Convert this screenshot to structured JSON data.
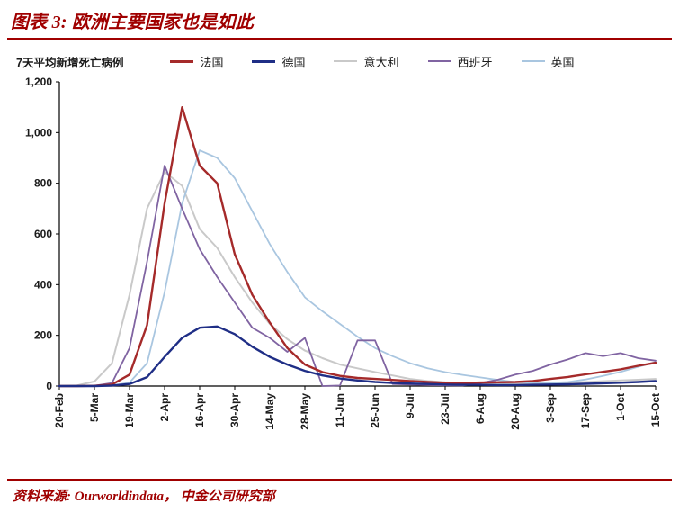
{
  "header": {
    "title": "图表 3: 欧洲主要国家也是如此",
    "accent_color": "#A00000"
  },
  "footer": {
    "source": "资料来源: Ourworldindata， 中金公司研究部"
  },
  "chart_data": {
    "type": "line",
    "title": "图表 3: 欧洲主要国家也是如此",
    "ylabel": "7天平均新增死亡病例",
    "xlabel": "",
    "ylim": [
      0,
      1200
    ],
    "ytick_step": 200,
    "grid": false,
    "legend_position": "top",
    "x": [
      "20-Feb",
      "27-Feb",
      "5-Mar",
      "12-Mar",
      "19-Mar",
      "26-Mar",
      "2-Apr",
      "9-Apr",
      "16-Apr",
      "23-Apr",
      "30-Apr",
      "7-May",
      "14-May",
      "21-May",
      "28-May",
      "4-Jun",
      "11-Jun",
      "18-Jun",
      "25-Jun",
      "2-Jul",
      "9-Jul",
      "16-Jul",
      "23-Jul",
      "30-Jul",
      "6-Aug",
      "13-Aug",
      "20-Aug",
      "27-Aug",
      "3-Sep",
      "10-Sep",
      "17-Sep",
      "24-Sep",
      "1-Oct",
      "8-Oct",
      "15-Oct"
    ],
    "x_tick_labels": [
      "20-Feb",
      "5-Mar",
      "19-Mar",
      "2-Apr",
      "16-Apr",
      "30-Apr",
      "14-May",
      "28-May",
      "11-Jun",
      "25-Jun",
      "9-Jul",
      "23-Jul",
      "6-Aug",
      "20-Aug",
      "3-Sep",
      "17-Sep",
      "1-Oct",
      "15-Oct"
    ],
    "draw_order": [
      2,
      4,
      3,
      0,
      1
    ],
    "series": [
      {
        "name": "法国",
        "color": "#A52A2A",
        "width": 2.4,
        "values": [
          0,
          0,
          1,
          6,
          45,
          240,
          720,
          1100,
          870,
          800,
          520,
          360,
          250,
          150,
          85,
          55,
          40,
          32,
          28,
          24,
          20,
          16,
          13,
          12,
          14,
          15,
          16,
          20,
          28,
          36,
          46,
          56,
          66,
          80,
          92
        ]
      },
      {
        "name": "德国",
        "color": "#1F2E86",
        "width": 2.4,
        "values": [
          0,
          0,
          0,
          2,
          8,
          35,
          115,
          190,
          230,
          235,
          205,
          155,
          115,
          85,
          60,
          42,
          30,
          22,
          16,
          12,
          10,
          8,
          6,
          5,
          5,
          4,
          4,
          5,
          6,
          7,
          9,
          11,
          13,
          16,
          20
        ]
      },
      {
        "name": "意大利",
        "color": "#C9C9C9",
        "width": 2,
        "values": [
          0,
          2,
          18,
          90,
          360,
          700,
          845,
          790,
          620,
          545,
          430,
          330,
          245,
          185,
          140,
          110,
          85,
          70,
          55,
          42,
          28,
          20,
          15,
          12,
          11,
          9,
          8,
          9,
          11,
          13,
          16,
          19,
          22,
          25,
          28
        ]
      },
      {
        "name": "西班牙",
        "color": "#8064A2",
        "width": 1.8,
        "values": [
          0,
          0,
          1,
          12,
          150,
          490,
          870,
          700,
          540,
          430,
          330,
          230,
          190,
          135,
          190,
          0,
          2,
          180,
          180,
          8,
          6,
          4,
          3,
          2,
          12,
          25,
          45,
          60,
          85,
          105,
          130,
          118,
          130,
          110,
          100
        ]
      },
      {
        "name": "英国",
        "color": "#A9C6E0",
        "width": 1.8,
        "values": [
          0,
          0,
          0,
          2,
          14,
          90,
          370,
          720,
          930,
          900,
          820,
          690,
          560,
          450,
          350,
          295,
          245,
          195,
          150,
          118,
          90,
          70,
          55,
          44,
          34,
          24,
          16,
          13,
          13,
          16,
          26,
          40,
          56,
          76,
          95
        ]
      }
    ]
  }
}
